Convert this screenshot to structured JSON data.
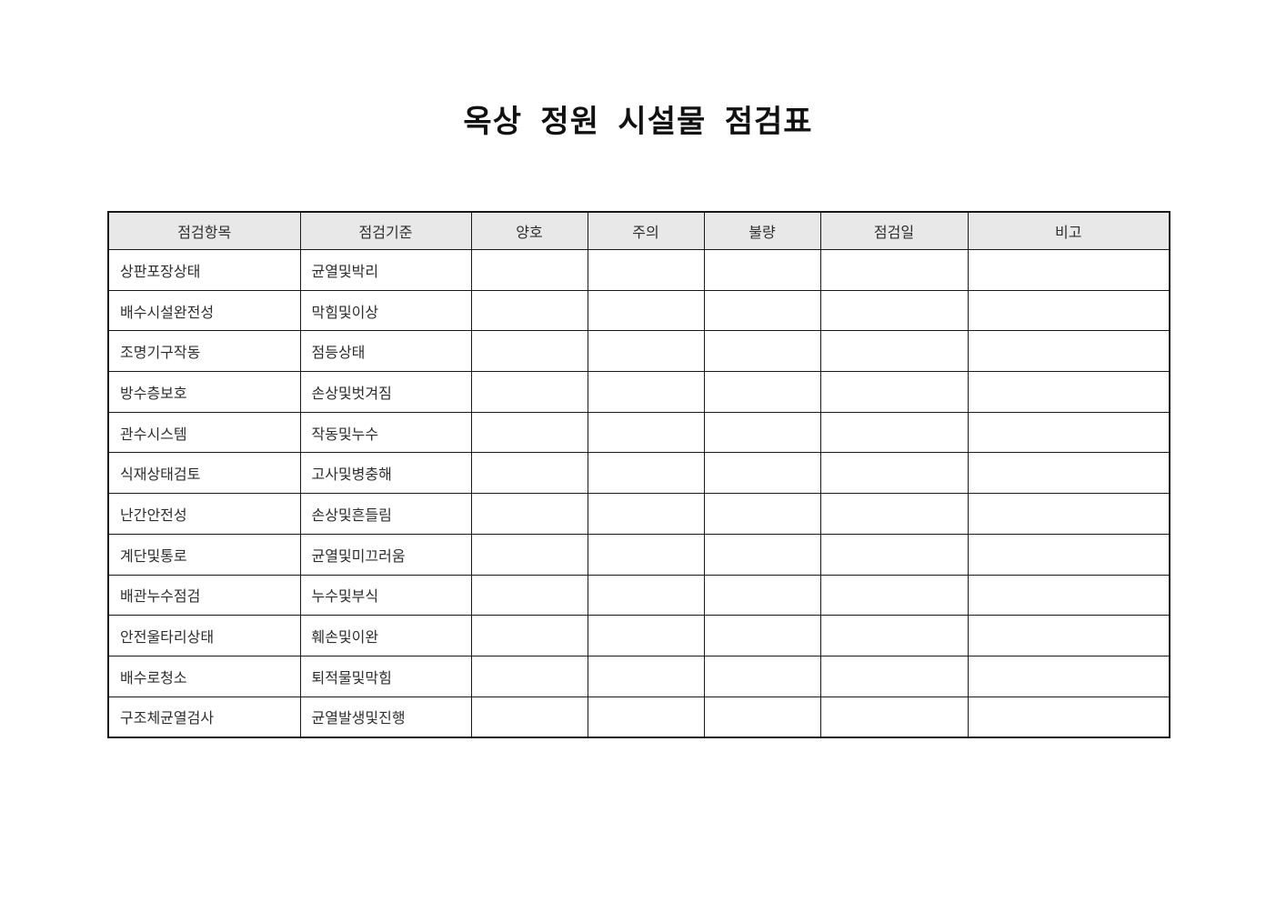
{
  "page": {
    "title": "옥상 정원 시설물 점검표"
  },
  "table": {
    "headers": [
      "점검항목",
      "점검기준",
      "양호",
      "주의",
      "불량",
      "점검일",
      "비고"
    ],
    "header_names": [
      "item",
      "criteria",
      "good",
      "caution",
      "defect",
      "inspection-date",
      "remarks"
    ],
    "rows": [
      [
        "상판포장상태",
        "균열및박리",
        "",
        "",
        "",
        "",
        ""
      ],
      [
        "배수시설완전성",
        "막힘및이상",
        "",
        "",
        "",
        "",
        ""
      ],
      [
        "조명기구작동",
        "점등상태",
        "",
        "",
        "",
        "",
        ""
      ],
      [
        "방수층보호",
        "손상및벗겨짐",
        "",
        "",
        "",
        "",
        ""
      ],
      [
        "관수시스템",
        "작동및누수",
        "",
        "",
        "",
        "",
        ""
      ],
      [
        "식재상태검토",
        "고사및병충해",
        "",
        "",
        "",
        "",
        ""
      ],
      [
        "난간안전성",
        "손상및흔들림",
        "",
        "",
        "",
        "",
        ""
      ],
      [
        "계단및통로",
        "균열및미끄러움",
        "",
        "",
        "",
        "",
        ""
      ],
      [
        "배관누수점검",
        "누수및부식",
        "",
        "",
        "",
        "",
        ""
      ],
      [
        "안전울타리상태",
        "훼손및이완",
        "",
        "",
        "",
        "",
        ""
      ],
      [
        "배수로청소",
        "퇴적물및막힘",
        "",
        "",
        "",
        "",
        ""
      ],
      [
        "구조체균열검사",
        "균열발생및진행",
        "",
        "",
        "",
        "",
        ""
      ]
    ],
    "colors": {
      "header_bg": "#e8e8e8",
      "border": "#1a1a1a",
      "text": "#2e2e2e"
    }
  }
}
